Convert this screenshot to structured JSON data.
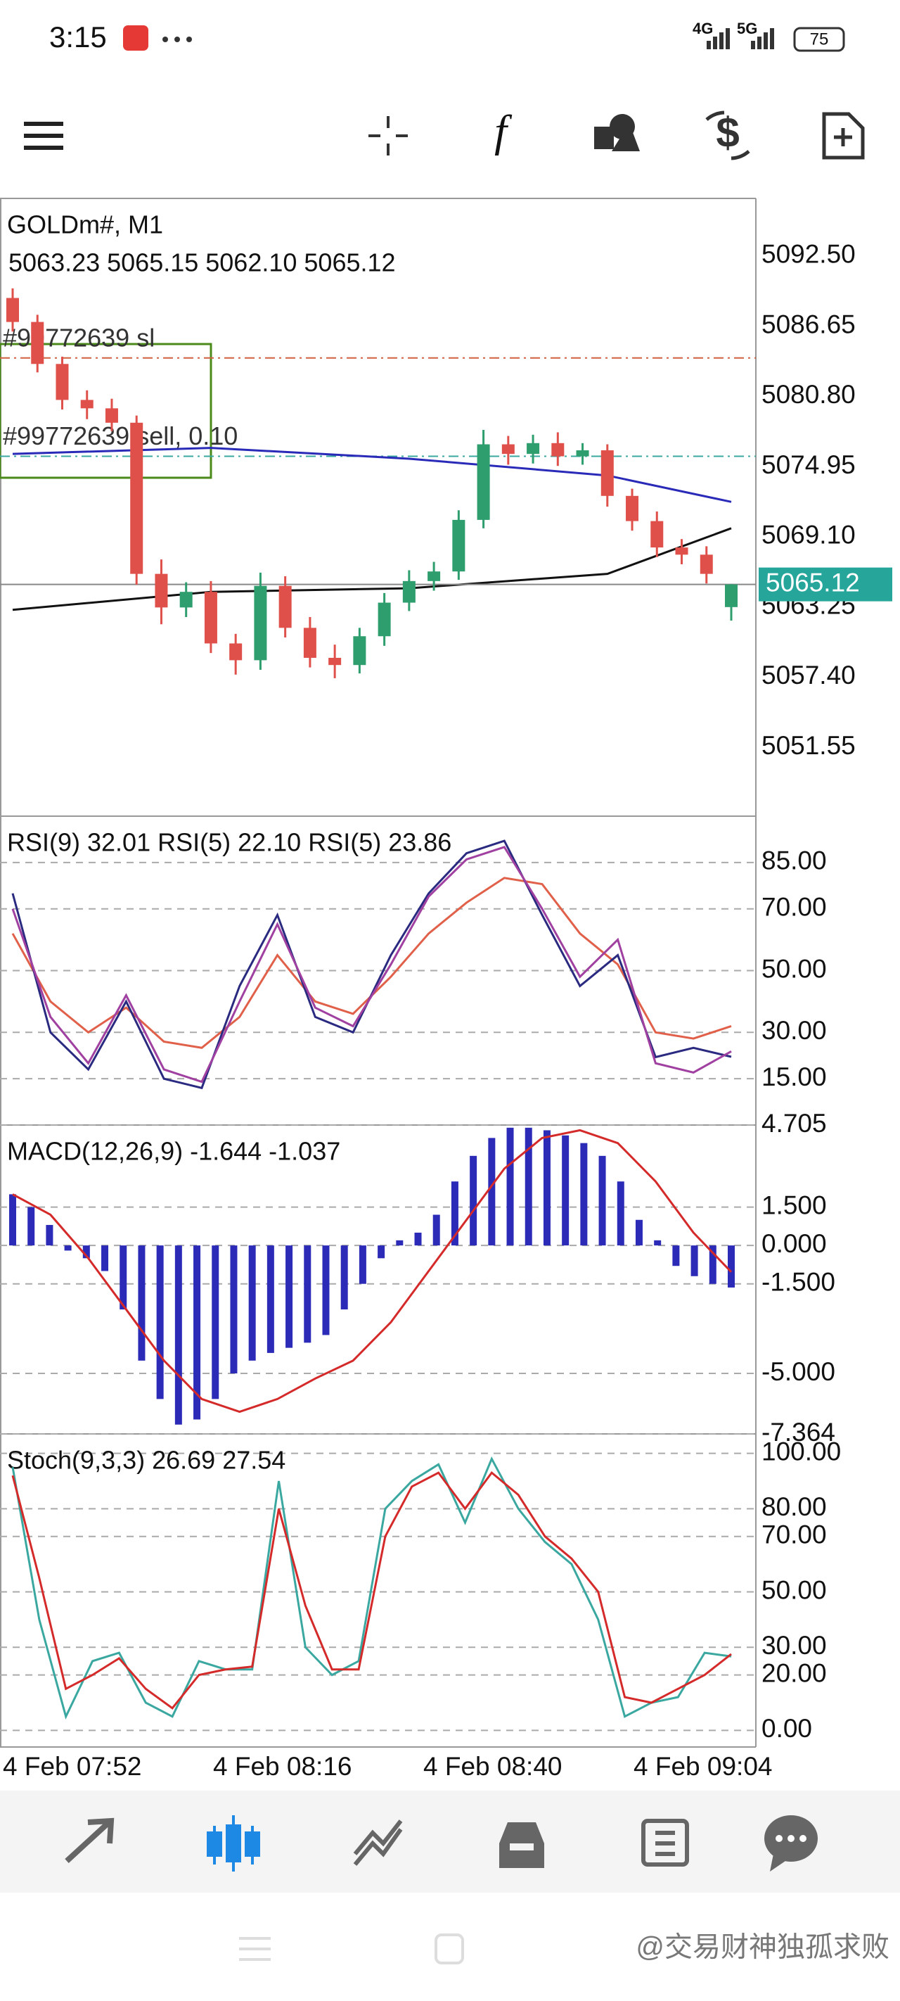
{
  "status_bar": {
    "time": "3:15",
    "network_1": "4G",
    "network_2": "5G",
    "battery": "75"
  },
  "chart_data": [
    {
      "type": "candlestick",
      "title": "GOLDm#, M1",
      "subtitle": "5063.23 5065.15 5062.10 5065.12",
      "open": [
        5089.0,
        5087.0,
        5083.5,
        5080.5,
        5079.8,
        5078.6,
        5066.0,
        5063.2,
        5064.5,
        5060.2,
        5058.8,
        5065.0,
        5061.5,
        5059.0,
        5058.4,
        5060.8,
        5063.6,
        5065.4,
        5066.2,
        5070.5,
        5076.8,
        5076.0,
        5076.9,
        5075.8,
        5076.3,
        5072.5,
        5070.4,
        5068.2,
        5067.6,
        5063.23
      ],
      "high": [
        5089.8,
        5087.6,
        5084.1,
        5081.3,
        5080.6,
        5079.2,
        5067.2,
        5065.3,
        5065.4,
        5061.0,
        5066.1,
        5065.8,
        5062.4,
        5060.1,
        5061.5,
        5064.4,
        5066.3,
        5067.0,
        5071.3,
        5078.0,
        5077.5,
        5077.6,
        5077.8,
        5076.9,
        5076.8,
        5073.1,
        5071.2,
        5068.9,
        5068.3,
        5065.15
      ],
      "low": [
        5086.2,
        5082.8,
        5079.7,
        5078.9,
        5077.9,
        5065.1,
        5061.8,
        5062.4,
        5059.4,
        5057.6,
        5058.0,
        5060.7,
        5058.2,
        5057.3,
        5057.7,
        5060.0,
        5062.9,
        5064.6,
        5065.5,
        5069.8,
        5075.1,
        5075.2,
        5075.0,
        5075.1,
        5071.6,
        5069.6,
        5067.4,
        5066.8,
        5065.2,
        5062.1
      ],
      "close": [
        5087.0,
        5083.5,
        5080.5,
        5079.8,
        5078.6,
        5066.0,
        5063.2,
        5064.5,
        5060.2,
        5058.8,
        5065.0,
        5061.5,
        5059.0,
        5058.4,
        5060.8,
        5063.6,
        5065.4,
        5066.2,
        5070.5,
        5076.8,
        5076.0,
        5076.9,
        5075.8,
        5076.3,
        5072.5,
        5070.4,
        5068.2,
        5067.6,
        5066.0,
        5065.12
      ],
      "up_color": "#2e9e6e",
      "down_color": "#e0504a",
      "overlays": [
        {
          "color": "#2a2ab8",
          "x": [
            0,
            8,
            16,
            24,
            29
          ],
          "values": [
            5076.0,
            5076.5,
            5075.6,
            5074.2,
            5072.0
          ]
        },
        {
          "color": "#111111",
          "x": [
            0,
            8,
            16,
            24,
            29
          ],
          "values": [
            5063.0,
            5064.5,
            5064.8,
            5066.0,
            5069.8
          ]
        }
      ],
      "orders": [
        {
          "label": "#99772639 sl",
          "price": 5084.0,
          "color": "#d06040"
        },
        {
          "label": "#99772639 sell, 0.10",
          "price": 5075.8,
          "color": "#3aa8a0"
        }
      ],
      "current_price": 5065.12,
      "current_color": "#26a69a",
      "ylim": [
        5045.8,
        5097.3
      ],
      "yticks": [
        {
          "value": 5092.5,
          "label": "5092.50"
        },
        5086.65,
        {
          "value": 5080.8,
          "label": "5080.80"
        },
        5074.95,
        {
          "value": 5069.1,
          "label": "5069.10"
        },
        5063.25,
        {
          "value": 5057.4,
          "label": "5057.40"
        },
        5051.55
      ],
      "grid": false
    },
    {
      "type": "line",
      "title": "RSI(9) 32.01 RSI(5) 22.10 RSI(5) 23.86",
      "series": [
        {
          "color": "#e0604a",
          "values": [
            62,
            40,
            30,
            38,
            27,
            25,
            35,
            55,
            40,
            36,
            48,
            62,
            72,
            80,
            78,
            62,
            52,
            30,
            28,
            32.01
          ]
        },
        {
          "color": "#2a2a80",
          "values": [
            75,
            30,
            18,
            40,
            15,
            12,
            45,
            68,
            35,
            30,
            55,
            75,
            88,
            92,
            68,
            45,
            55,
            22,
            25,
            22.1
          ]
        },
        {
          "color": "#a040a0",
          "values": [
            70,
            35,
            20,
            42,
            18,
            14,
            40,
            65,
            38,
            32,
            52,
            74,
            86,
            90,
            70,
            48,
            60,
            20,
            17,
            23.86
          ]
        }
      ],
      "ylim": [
        0,
        100
      ],
      "yticks": [
        {
          "value": 85,
          "label": "85.00"
        },
        {
          "value": 70,
          "label": "70.00"
        },
        {
          "value": 50,
          "label": "50.00"
        },
        {
          "value": 30,
          "label": "30.00"
        },
        {
          "value": 15,
          "label": "15.00"
        }
      ],
      "grid": true
    },
    {
      "type": "bar",
      "title": "MACD(12,26,9) -1.644 -1.037",
      "values": [
        2.0,
        1.5,
        0.8,
        -0.2,
        -0.5,
        -1.0,
        -2.5,
        -4.5,
        -6.0,
        -7.0,
        -6.8,
        -6.0,
        -5.0,
        -4.5,
        -4.2,
        -4.0,
        -3.8,
        -3.5,
        -2.5,
        -1.5,
        -0.5,
        0.2,
        0.5,
        1.2,
        2.5,
        3.5,
        4.2,
        4.6,
        4.6,
        4.5,
        4.3,
        4.0,
        3.5,
        2.5,
        1.0,
        0.2,
        -0.8,
        -1.2,
        -1.5,
        -1.644
      ],
      "color": "#2b2bb8",
      "signal": {
        "color": "#d42a2a",
        "values": [
          2.0,
          1.2,
          -0.5,
          -2.5,
          -4.5,
          -6.0,
          -6.5,
          -6.0,
          -5.2,
          -4.5,
          -3.0,
          -1.0,
          1.0,
          3.0,
          4.2,
          4.5,
          4.0,
          2.5,
          0.5,
          -1.037
        ]
      },
      "ylim": [
        -7.364,
        4.705
      ],
      "yticks": [
        4.705,
        {
          "value": 1.5,
          "label": "1.500"
        },
        {
          "value": 0,
          "label": "0.000"
        },
        {
          "value": -1.5,
          "label": "-1.500"
        },
        {
          "value": -5,
          "label": "-5.000"
        },
        -7.364
      ],
      "grid": true
    },
    {
      "type": "line",
      "title": "Stoch(9,3,3) 26.69 27.54",
      "series": [
        {
          "color": "#3aa8a0",
          "values": [
            95,
            40,
            5,
            25,
            28,
            10,
            5,
            25,
            22,
            22,
            90,
            30,
            20,
            25,
            80,
            90,
            96,
            75,
            98,
            80,
            68,
            60,
            40,
            5,
            10,
            12,
            28,
            26.69
          ]
        },
        {
          "color": "#d42a2a",
          "values": [
            92,
            55,
            15,
            20,
            26,
            15,
            8,
            20,
            22,
            23,
            80,
            45,
            22,
            22,
            70,
            88,
            93,
            80,
            93,
            85,
            70,
            62,
            50,
            12,
            10,
            15,
            20,
            27.54
          ]
        }
      ],
      "ylim": [
        -6,
        107
      ],
      "yticks": [
        {
          "value": 100,
          "label": "100.00"
        },
        {
          "value": 80,
          "label": "80.00"
        },
        {
          "value": 70,
          "label": "70.00"
        },
        {
          "value": 50,
          "label": "50.00"
        },
        {
          "value": 30,
          "label": "30.00"
        },
        {
          "value": 20,
          "label": "20.00"
        },
        {
          "value": 0,
          "label": "0.00"
        }
      ],
      "grid": true
    }
  ],
  "time_axis": [
    "4 Feb 07:52",
    "4 Feb 08:16",
    "4 Feb 08:40",
    "4 Feb 09:04"
  ],
  "footer": {
    "watermark": "@交易财神独孤求败"
  }
}
